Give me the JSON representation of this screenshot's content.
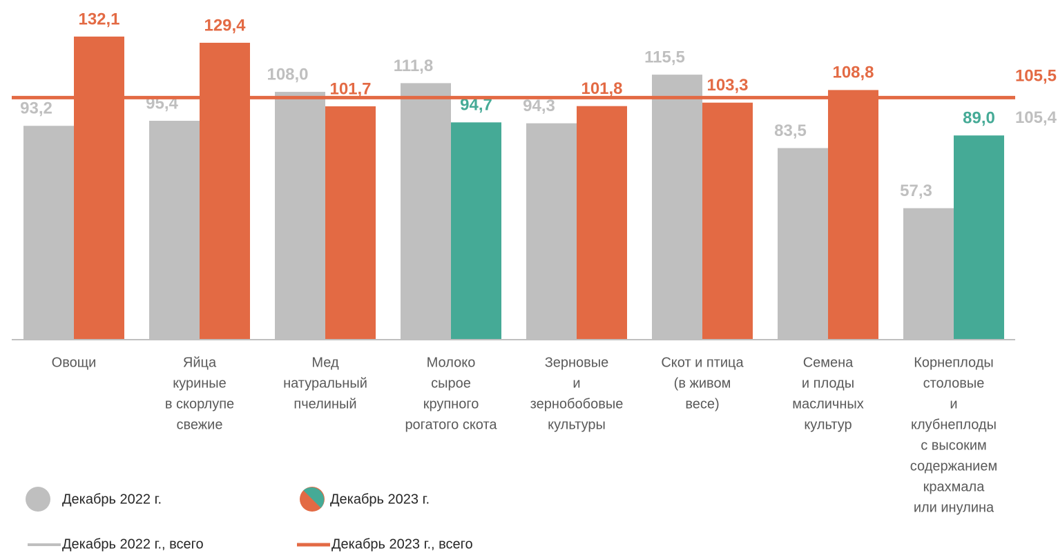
{
  "chart_data": {
    "type": "bar",
    "categories": [
      [
        "Овощи"
      ],
      [
        "Яйца",
        "куриные",
        "в скорлупе",
        "свежие"
      ],
      [
        "Мед",
        "натуральный",
        "пчелиный"
      ],
      [
        "Молоко",
        "сырое",
        "крупного",
        "рогатого скота"
      ],
      [
        "Зерновые",
        "и",
        "зернобобовые",
        "культуры"
      ],
      [
        "Скот и птица",
        "(в живом",
        "весе)"
      ],
      [
        "Семена",
        "и плоды",
        "масличных",
        "культур"
      ],
      [
        "Корнеплоды",
        "столовые",
        "и",
        "клубнеплоды",
        "с высоким",
        "содержанием",
        "крахмала",
        "или инулина"
      ]
    ],
    "series": [
      {
        "name": "Декабрь 2022 г.",
        "color": "#bfbfbf",
        "values": [
          93.2,
          95.4,
          108.0,
          111.8,
          94.3,
          115.5,
          83.5,
          57.3
        ],
        "value_labels": [
          "93,2",
          "95,4",
          "108,0",
          "111,8",
          "94,3",
          "115,5",
          "83,5",
          "57,3"
        ]
      },
      {
        "name": "Декабрь 2023 г.",
        "colors": [
          "#e36a44",
          "#e36a44",
          "#e36a44",
          "#45aa96",
          "#e36a44",
          "#e36a44",
          "#e36a44",
          "#45aa96"
        ],
        "values": [
          132.1,
          129.4,
          101.7,
          94.7,
          101.8,
          103.3,
          108.8,
          89.0
        ],
        "value_labels": [
          "132,1",
          "129,4",
          "101,7",
          "94,7",
          "101,8",
          "103,3",
          "108,8",
          "89,0"
        ]
      }
    ],
    "reference_lines": [
      {
        "name": "Декабрь 2022 г., всего",
        "color": "#bfbfbf",
        "value": 105.4,
        "value_label": "105,4"
      },
      {
        "name": "Декабрь 2023 г., всего",
        "color": "#e36a44",
        "value": 105.5,
        "value_label": "105,5"
      }
    ],
    "ylim": [
      0,
      136
    ]
  }
}
